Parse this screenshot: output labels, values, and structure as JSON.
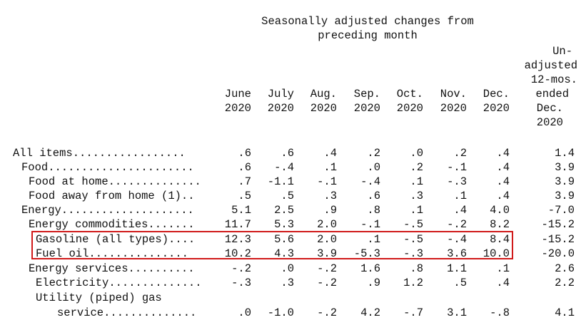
{
  "header": {
    "group_title_line1": "Seasonally adjusted changes from",
    "group_title_line2": "preceding month",
    "unadjusted_lines": [
      "Un-",
      "adjusted",
      "12-mos.",
      "ended",
      "Dec.",
      "2020"
    ]
  },
  "columns": [
    {
      "month": "June",
      "year": "2020"
    },
    {
      "month": "July",
      "year": "2020"
    },
    {
      "month": "Aug.",
      "year": "2020"
    },
    {
      "month": "Sep.",
      "year": "2020"
    },
    {
      "month": "Oct.",
      "year": "2020"
    },
    {
      "month": "Nov.",
      "year": "2020"
    },
    {
      "month": "Dec.",
      "year": "2020"
    }
  ],
  "rows": [
    {
      "label": "All items.................",
      "values": [
        ".6",
        ".6",
        ".4",
        ".2",
        ".0",
        ".2",
        ".4"
      ],
      "unadjusted": "1.4"
    },
    {
      "label": "Food......................",
      "values": [
        ".6",
        "-.4",
        ".1",
        ".0",
        ".2",
        "-.1",
        ".4"
      ],
      "unadjusted": "3.9"
    },
    {
      "label": "Food at home..............",
      "values": [
        ".7",
        "-1.1",
        "-.1",
        "-.4",
        ".1",
        "-.3",
        ".4"
      ],
      "unadjusted": "3.9"
    },
    {
      "label": "Food away from home (1)..",
      "values": [
        ".5",
        ".5",
        ".3",
        ".6",
        ".3",
        ".1",
        ".4"
      ],
      "unadjusted": "3.9"
    },
    {
      "label": "Energy....................",
      "values": [
        "5.1",
        "2.5",
        ".9",
        ".8",
        ".1",
        ".4",
        "4.0"
      ],
      "unadjusted": "-7.0"
    },
    {
      "label": "Energy commodities.......",
      "values": [
        "11.7",
        "5.3",
        "2.0",
        "-.1",
        "-.5",
        "-.2",
        "8.2"
      ],
      "unadjusted": "-15.2"
    },
    {
      "label": "Gasoline (all types)....",
      "values": [
        "12.3",
        "5.6",
        "2.0",
        ".1",
        "-.5",
        "-.4",
        "8.4"
      ],
      "unadjusted": "-15.2"
    },
    {
      "label": "Fuel oil...............",
      "values": [
        "10.2",
        "4.3",
        "3.9",
        "-5.3",
        "-.3",
        "3.6",
        "10.0"
      ],
      "unadjusted": "-20.0"
    },
    {
      "label": "Energy services..........",
      "values": [
        "-.2",
        ".0",
        "-.2",
        "1.6",
        ".8",
        "1.1",
        ".1"
      ],
      "unadjusted": "2.6"
    },
    {
      "label": "Electricity..............",
      "values": [
        "-.3",
        ".3",
        "-.2",
        ".9",
        "1.2",
        ".5",
        ".4"
      ],
      "unadjusted": "2.2"
    },
    {
      "label": "Utility (piped) gas",
      "values": [
        "",
        "",
        "",
        "",
        "",
        "",
        ""
      ],
      "unadjusted": ""
    },
    {
      "label": "service..............",
      "values": [
        ".0",
        "-1.0",
        "-.2",
        "4.2",
        "-.7",
        "3.1",
        "-.8"
      ],
      "unadjusted": "4.1"
    }
  ],
  "highlight_color": "#d01a1a"
}
